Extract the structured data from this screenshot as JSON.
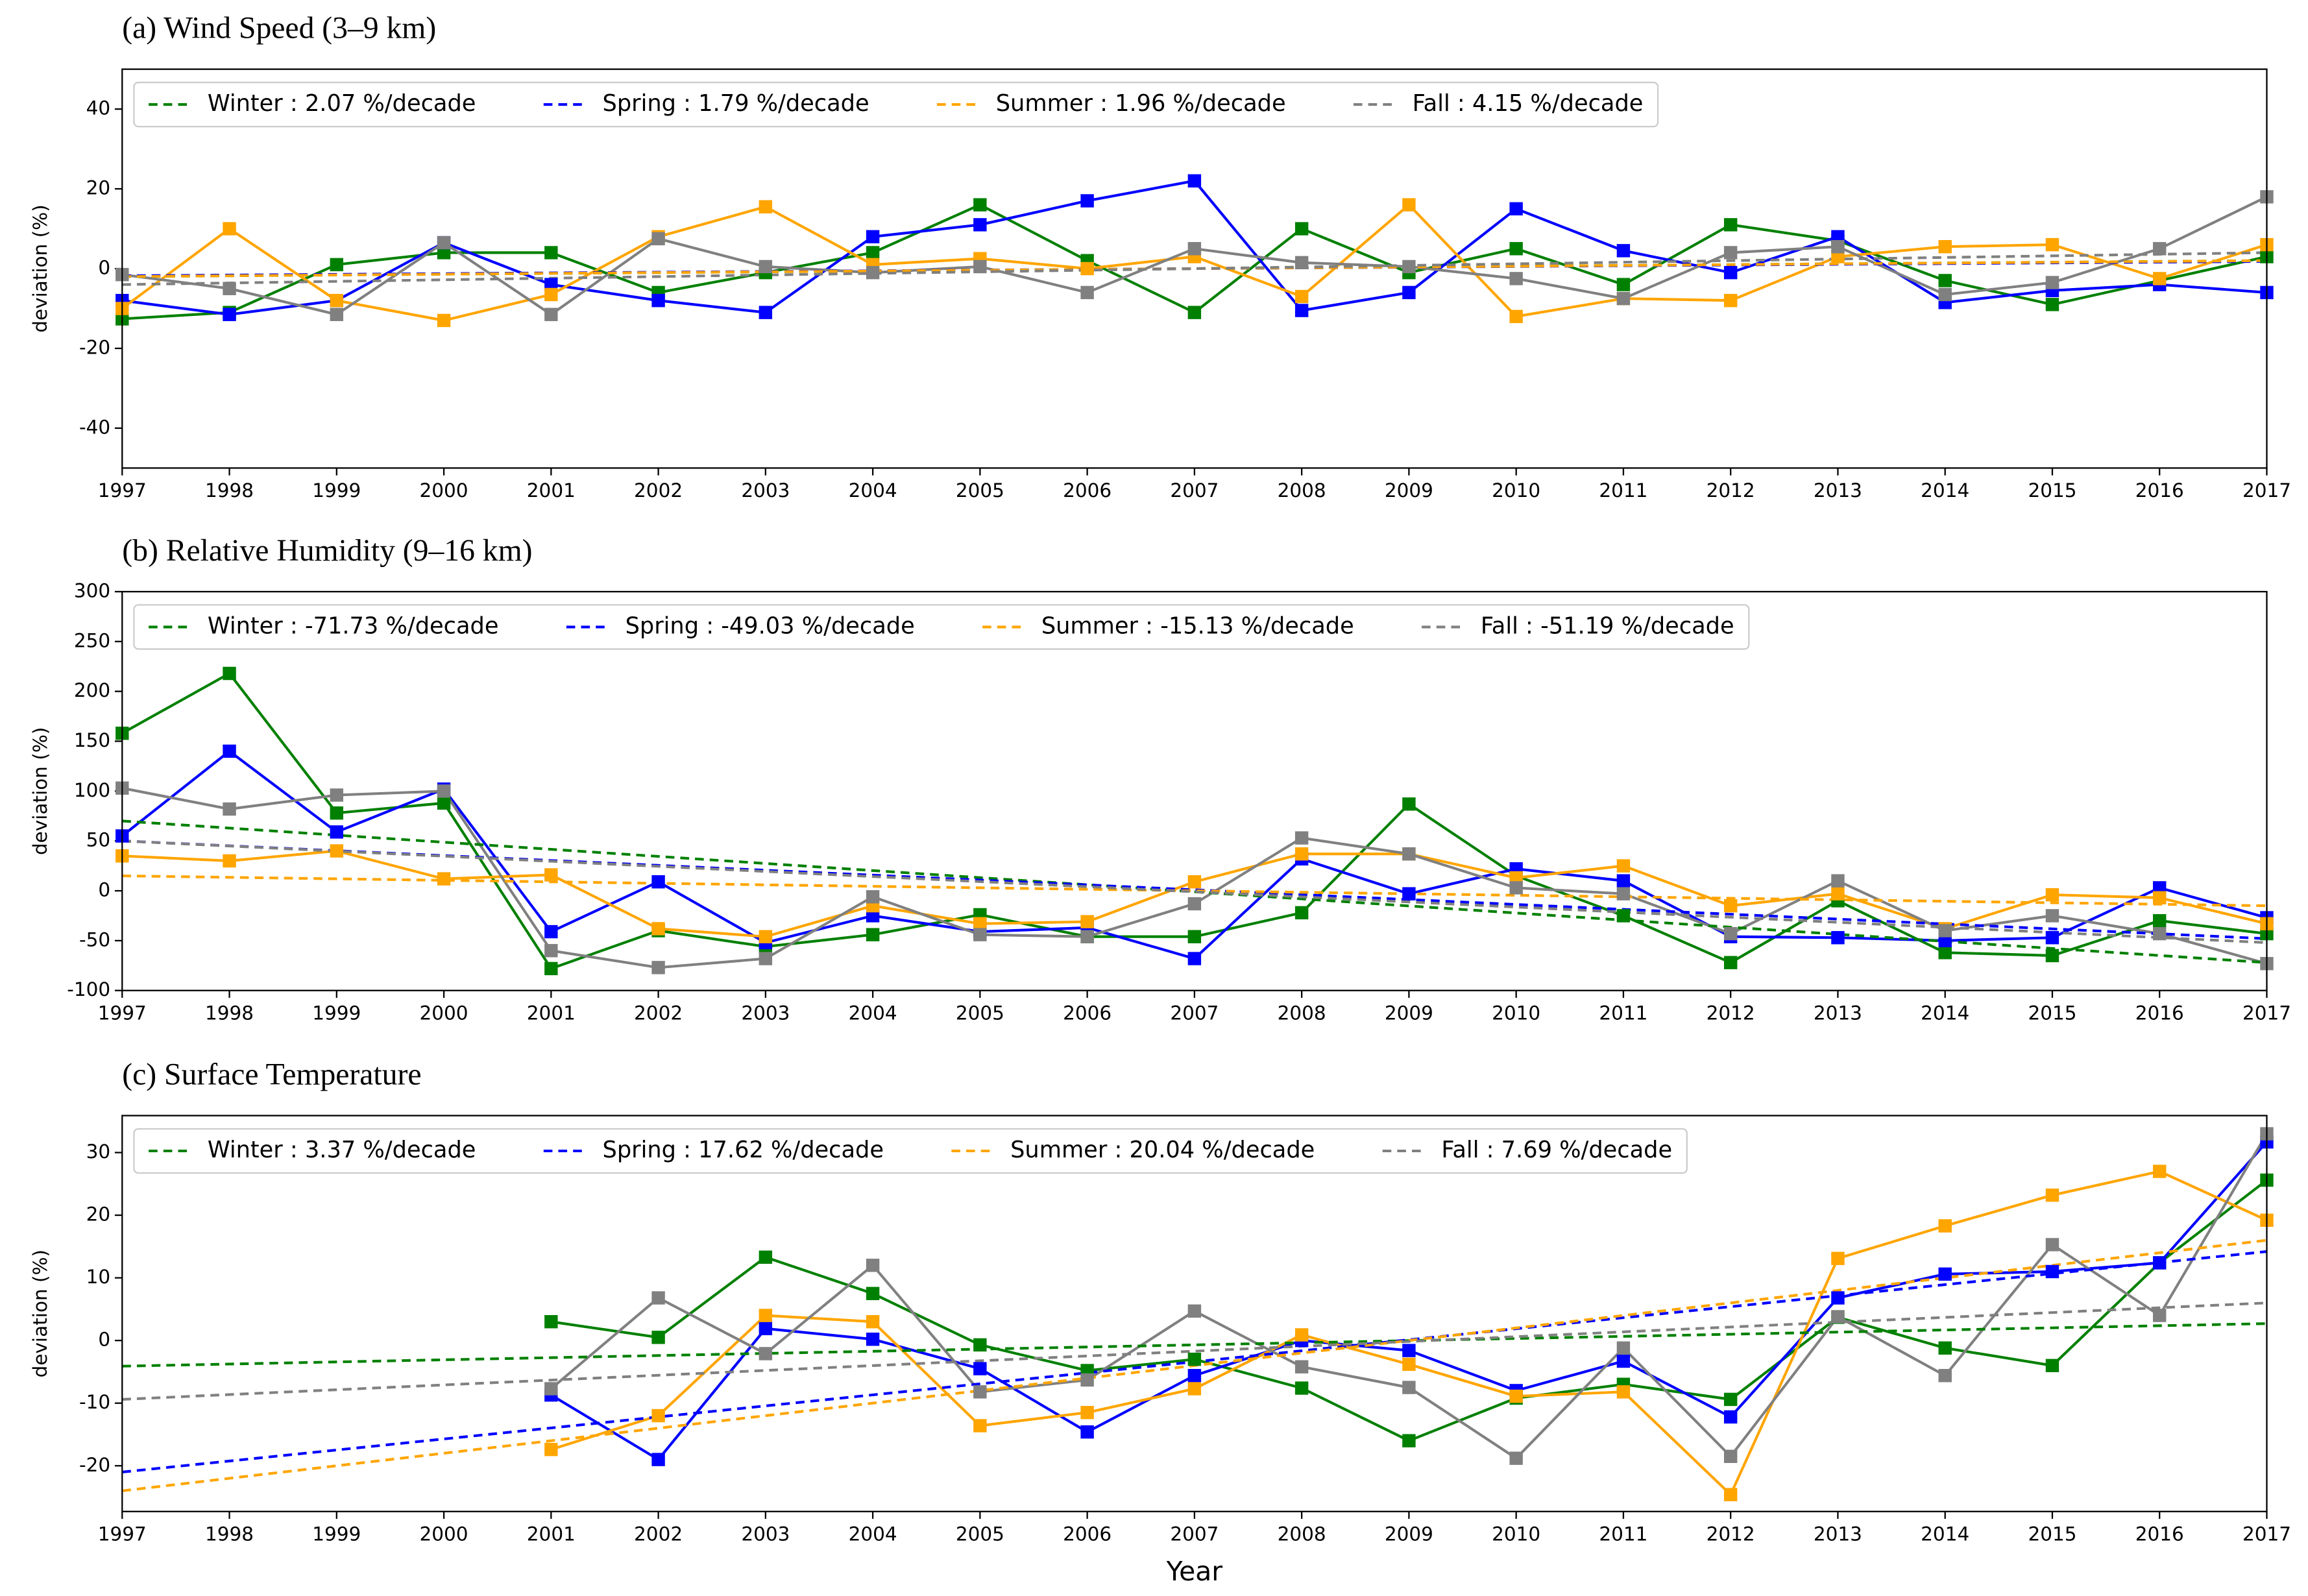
{
  "chart_data": [
    {
      "type": "line",
      "title": "(a) Wind Speed (3–9 km)",
      "ylabel": "deviation (%)",
      "x": [
        1997,
        1998,
        1999,
        2000,
        2001,
        2002,
        2003,
        2004,
        2005,
        2006,
        2007,
        2008,
        2009,
        2010,
        2011,
        2012,
        2013,
        2014,
        2015,
        2016,
        2017
      ],
      "xlim": [
        1997,
        2017
      ],
      "xticks": [
        1997,
        1998,
        1999,
        2000,
        2001,
        2002,
        2003,
        2004,
        2005,
        2006,
        2007,
        2008,
        2009,
        2010,
        2011,
        2012,
        2013,
        2014,
        2015,
        2016,
        2017
      ],
      "ylim": [
        -50,
        50
      ],
      "yticks": [
        -40,
        -20,
        0,
        20,
        40
      ],
      "legend": "upper left",
      "series": [
        {
          "color": "#008000",
          "marker": "square",
          "values": [
            -12.6,
            -11,
            1,
            4,
            4,
            -6,
            -1,
            4,
            16,
            2,
            -11,
            10,
            -1,
            5,
            -4,
            11,
            7,
            -3,
            -9,
            -3,
            3
          ]
        },
        {
          "color": "#0000ff",
          "marker": "square",
          "values": [
            -8,
            -11.5,
            -8,
            6.5,
            -4,
            -8,
            -11,
            8,
            11,
            17,
            22,
            -10.5,
            -6,
            15,
            4.5,
            -1,
            8,
            -8.5,
            -5.5,
            -4,
            -6
          ]
        },
        {
          "color": "#ffa500",
          "marker": "square",
          "values": [
            -10,
            10,
            -8,
            -13,
            -6.5,
            8,
            15.5,
            1,
            2.5,
            0,
            3,
            -7,
            16,
            -12,
            -7.5,
            -8,
            3,
            5.5,
            6,
            -2.5,
            6
          ]
        },
        {
          "color": "#808080",
          "marker": "square",
          "values": [
            -1.5,
            -5,
            -11.5,
            6.5,
            -11.5,
            7.5,
            0.5,
            -1,
            0.5,
            -6,
            5,
            1.5,
            0.5,
            -2.5,
            -7.5,
            4,
            5.5,
            -6.5,
            -3.5,
            5,
            18
          ]
        },
        {
          "name": "Winter : 2.07 %/decade",
          "color": "#008000",
          "dashed": true,
          "x": [
            1997,
            2017
          ],
          "values": [
            -2,
            2
          ]
        },
        {
          "name": "Spring : 1.79 %/decade",
          "color": "#0000ff",
          "dashed": true,
          "x": [
            1997,
            2017
          ],
          "values": [
            -1.8,
            1.8
          ]
        },
        {
          "name": "Summer : 1.96 %/decade",
          "color": "#ffa500",
          "dashed": true,
          "x": [
            1997,
            2017
          ],
          "values": [
            -2,
            2
          ]
        },
        {
          "name": "Fall : 4.15 %/decade",
          "color": "#808080",
          "dashed": true,
          "x": [
            1997,
            2017
          ],
          "values": [
            -4,
            4
          ]
        }
      ]
    },
    {
      "type": "line",
      "title": "(b) Relative Humidity (9–16 km)",
      "ylabel": "deviation (%)",
      "x": [
        1997,
        1998,
        1999,
        2000,
        2001,
        2002,
        2003,
        2004,
        2005,
        2006,
        2007,
        2008,
        2009,
        2010,
        2011,
        2012,
        2013,
        2014,
        2015,
        2016,
        2017
      ],
      "xlim": [
        1997,
        2017
      ],
      "xticks": [
        1997,
        1998,
        1999,
        2000,
        2001,
        2002,
        2003,
        2004,
        2005,
        2006,
        2007,
        2008,
        2009,
        2010,
        2011,
        2012,
        2013,
        2014,
        2015,
        2016,
        2017
      ],
      "ylim": [
        -100,
        300
      ],
      "yticks": [
        -100,
        -50,
        0,
        50,
        100,
        150,
        200,
        250,
        300
      ],
      "legend": "upper left",
      "series": [
        {
          "color": "#008000",
          "marker": "square",
          "values": [
            158,
            218,
            78,
            88,
            -78,
            -40,
            -56,
            -44,
            -24,
            -46,
            -46,
            -22,
            87,
            15,
            -25,
            -72,
            -10,
            -62,
            -65,
            -30,
            -43
          ]
        },
        {
          "color": "#0000ff",
          "marker": "square",
          "values": [
            55,
            140,
            59,
            102,
            -41,
            9,
            -52,
            -25,
            -41,
            -37,
            -68,
            32,
            -3,
            22,
            10,
            -46,
            -47,
            -50,
            -47,
            3,
            -27
          ]
        },
        {
          "color": "#ffa500",
          "marker": "square",
          "values": [
            35,
            30,
            40,
            12,
            16,
            -38,
            -46,
            -15,
            -33,
            -31,
            9,
            37,
            37,
            13,
            25,
            -15,
            -3,
            -38,
            -4,
            -7,
            -33
          ]
        },
        {
          "color": "#808080",
          "marker": "square",
          "values": [
            103,
            82,
            96,
            100,
            -60,
            -77,
            -68,
            -6,
            -44,
            -46,
            -13,
            53,
            37,
            3,
            -3,
            -43,
            10,
            -40,
            -25,
            -43,
            -73
          ]
        },
        {
          "name": "Winter : -71.73 %/decade",
          "color": "#008000",
          "dashed": true,
          "x": [
            1997,
            2017
          ],
          "values": [
            70,
            -72
          ]
        },
        {
          "name": "Spring : -49.03 %/decade",
          "color": "#0000ff",
          "dashed": true,
          "x": [
            1997,
            2017
          ],
          "values": [
            50,
            -48
          ]
        },
        {
          "name": "Summer : -15.13 %/decade",
          "color": "#ffa500",
          "dashed": true,
          "x": [
            1997,
            2017
          ],
          "values": [
            15,
            -15
          ]
        },
        {
          "name": "Fall : -51.19 %/decade",
          "color": "#808080",
          "dashed": true,
          "x": [
            1997,
            2017
          ],
          "values": [
            50,
            -52
          ]
        }
      ]
    },
    {
      "type": "line",
      "title": "(c) Surface Temperature",
      "ylabel": "deviation (%)",
      "xlabel": "Year",
      "x": [
        1997,
        1998,
        1999,
        2000,
        2001,
        2002,
        2003,
        2004,
        2005,
        2006,
        2007,
        2008,
        2009,
        2010,
        2011,
        2012,
        2013,
        2014,
        2015,
        2016,
        2017
      ],
      "xlim": [
        1997,
        2017
      ],
      "xticks": [
        1997,
        1998,
        1999,
        2000,
        2001,
        2002,
        2003,
        2004,
        2005,
        2006,
        2007,
        2008,
        2009,
        2010,
        2011,
        2012,
        2013,
        2014,
        2015,
        2016,
        2017
      ],
      "ylim": [
        -27.3,
        35.9
      ],
      "yticks": [
        -20,
        -10,
        0,
        10,
        20,
        30
      ],
      "legend": "upper left",
      "series": [
        {
          "color": "#008000",
          "marker": "square",
          "values": [
            null,
            null,
            null,
            null,
            3,
            0.5,
            13.3,
            7.5,
            -0.7,
            -4.8,
            -3,
            -7.6,
            -16,
            -9.2,
            -7,
            -9.4,
            3.7,
            -1.2,
            -4,
            12.4,
            25.6
          ]
        },
        {
          "color": "#0000ff",
          "marker": "square",
          "values": [
            null,
            null,
            null,
            null,
            -8.7,
            -19,
            1.9,
            0.2,
            -4.5,
            -14.6,
            -5.6,
            0,
            -1.6,
            -8,
            -3.3,
            -12.2,
            6.8,
            10.6,
            11,
            12.4,
            31.7
          ]
        },
        {
          "color": "#ffa500",
          "marker": "square",
          "values": [
            null,
            null,
            null,
            null,
            -17.4,
            -12,
            4,
            3,
            -13.6,
            -11.5,
            -7.7,
            0.9,
            -3.8,
            -8.9,
            -8.2,
            -24.6,
            13.1,
            18.3,
            23.2,
            27,
            19.2
          ]
        },
        {
          "color": "#808080",
          "marker": "square",
          "values": [
            null,
            null,
            null,
            null,
            -7.7,
            6.8,
            -2.1,
            12,
            -8.2,
            -6.3,
            4.7,
            -4.2,
            -7.5,
            -18.8,
            -1.2,
            -18.5,
            3.8,
            -5.6,
            15.3,
            4,
            33
          ]
        },
        {
          "name": "Winter : 3.37 %/decade",
          "color": "#008000",
          "dashed": true,
          "x": [
            1997,
            2017
          ],
          "values": [
            -4.1,
            2.7
          ]
        },
        {
          "name": "Spring : 17.62 %/decade",
          "color": "#0000ff",
          "dashed": true,
          "x": [
            1997,
            2017
          ],
          "values": [
            -21,
            14.2
          ]
        },
        {
          "name": "Summer : 20.04 %/decade",
          "color": "#ffa500",
          "dashed": true,
          "x": [
            1997,
            2017
          ],
          "values": [
            -24,
            16
          ]
        },
        {
          "name": "Fall : 7.69 %/decade",
          "color": "#808080",
          "dashed": true,
          "x": [
            1997,
            2017
          ],
          "values": [
            -9.4,
            6
          ]
        }
      ]
    }
  ]
}
